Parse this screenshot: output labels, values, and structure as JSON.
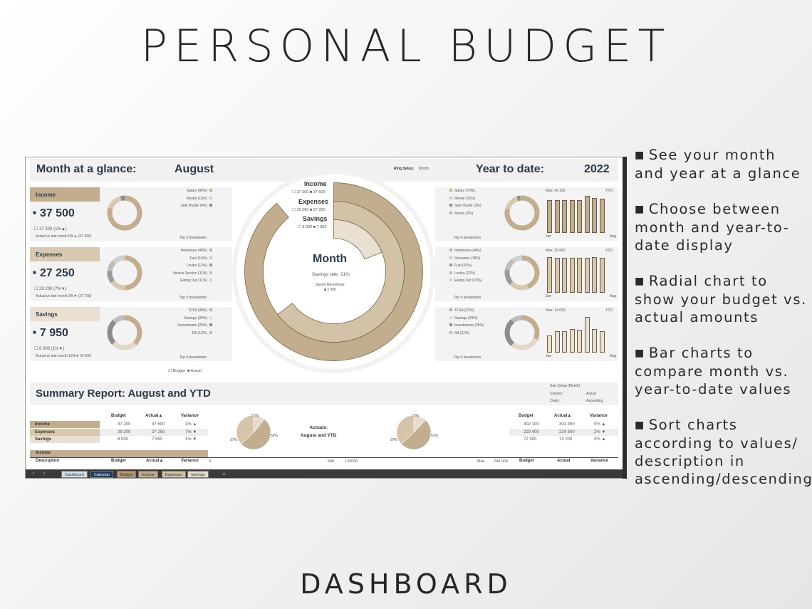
{
  "hero_title": "PERSONAL BUDGET",
  "footer_title": "DASHBOARD",
  "features": [
    "See your month and year at a glance",
    "Choose between month and year-to-date display",
    "Radial chart to show your budget vs. actual amounts",
    "Bar charts to compare month vs. year-to-date values",
    "Sort charts according to values/ description in ascending/descending"
  ],
  "colors": {
    "accent": "#c2ad8e",
    "accent_light": "#d8c8b0",
    "accent_pale": "#eae0d2",
    "dark": "#2b3a4a",
    "panel": "#f2f2f2"
  },
  "dashboard": {
    "month_label": "Month at a glance:",
    "month_value": "August",
    "ring_setup_label": "Ring Setup:",
    "ring_setup_value": "Month",
    "ytd_label": "Year to date:",
    "ytd_value": "2022",
    "center": {
      "income_label": "Income",
      "income_budget": "37 200",
      "income_actual": "37 500",
      "expenses_label": "Expenses",
      "expenses_budget": "29 200",
      "expenses_actual": "27 250",
      "savings_label": "Savings",
      "savings_budget": "8 000",
      "savings_actual": "7 950",
      "title": "Month",
      "savings_rate": "Savings rate: 21%",
      "spend_label": "Spend Remaining:",
      "spend_value": "2 300"
    },
    "cards": [
      {
        "label": "Income",
        "value": "37 500",
        "budget_line": "37 200  (1%▲)",
        "vs_last": "Actual vs last month 0%▲ (37 400)",
        "breakdown_items": [
          "Salary (80%)",
          "Rental (16%)",
          "Side Hustle (4%)"
        ],
        "breakdown_title": "Top 3 breakdown",
        "ytd_items": [
          "Salary (79%)",
          "Rental (16%)",
          "Side Hustle (3%)",
          "Bonus (2%)"
        ],
        "ytd_title": "Top 4 breakdown",
        "max_label": "Max: 42 150",
        "ytd_tag": "YTD",
        "axis_start": "Jan",
        "axis_end": "Aug",
        "bars": [
          0.86,
          0.86,
          0.86,
          0.86,
          0.86,
          0.97,
          0.9,
          0.88
        ]
      },
      {
        "label": "Expenses",
        "value": "27 250",
        "budget_line": "29 200  (7%▼)",
        "vs_last": "Actual vs last month 2%▼ (27 700)",
        "breakdown_items": [
          "Homeloan (49%)",
          "Fuel (16%)",
          "Levies (12%)",
          "Vehicle Service (11%)",
          "Eating Out (11%)"
        ],
        "breakdown_title": "Top 5 breakdown",
        "ytd_items": [
          "Homeloan (44%)",
          "Groceries (19%)",
          "Fuel (15%)",
          "Levies (12%)",
          "Eating Out (10%)"
        ],
        "ytd_title": "Top 5 breakdown",
        "max_label": "Max: 29 950",
        "ytd_tag": "YTD",
        "axis_start": "Jan",
        "axis_end": "Aug",
        "bars": [
          0.93,
          0.9,
          0.9,
          0.9,
          0.9,
          0.9,
          0.92,
          0.91
        ]
      },
      {
        "label": "Savings",
        "value": "7 950",
        "budget_line": "8 000  (1%▼)",
        "vs_last": "Actual vs last month 12%▼ (8 900)",
        "breakdown_items": [
          "TFSA (38%)",
          "Savings (25%)",
          "Investments (25%)",
          "RA (13%)"
        ],
        "breakdown_title": "Top 4 breakdown",
        "ytd_items": [
          "TFSA (32%)",
          "Savings (29%)",
          "Investments (28%)",
          "RA (11%)"
        ],
        "ytd_title": "Top 4 breakdown",
        "max_label": "Max: 14 000",
        "ytd_tag": "YTD",
        "axis_start": "Jan",
        "axis_end": "Aug",
        "bars": [
          0.45,
          0.55,
          0.55,
          0.62,
          0.6,
          0.92,
          0.62,
          0.56
        ]
      }
    ],
    "legend_budget": "Budget",
    "legend_actual": "Actual"
  },
  "summary": {
    "title": "Summary Report: August and YTD",
    "sort_setup_label": "Sort Setup (Month):",
    "sort_column_label": "Column:",
    "sort_column_value": "Actual",
    "sort_order_label": "Order:",
    "sort_order_value": "Ascending",
    "headers": [
      "Budget",
      "Actual▲",
      "Variance"
    ],
    "month_rows": [
      {
        "name": "Income",
        "budget": "37 200",
        "actual": "37 500",
        "variance": "1% ▲"
      },
      {
        "name": "Expenses",
        "budget": "29 200",
        "actual": "27 250",
        "variance": "7% ▼"
      },
      {
        "name": "Savings",
        "budget": "8 000",
        "actual": "7 950",
        "variance": "1% ▼"
      }
    ],
    "ytd_rows": [
      {
        "budget": "302 100",
        "actual": "303 450",
        "variance": "0% ▲"
      },
      {
        "budget": "229 400",
        "actual": "224 500",
        "variance": "2% ▼"
      },
      {
        "budget": "72 300",
        "actual": "74 200",
        "variance": "3% ▲"
      }
    ],
    "pie_center_label": "Actuals:\nAugust and YTD",
    "pie_month_labels": [
      "11%",
      "52%",
      "37%"
    ],
    "pie_ytd_labels": [
      "12%",
      "51%",
      "37%"
    ],
    "income_section": "Income",
    "desc_header": "Description",
    "detail_headers": [
      "Budget",
      "Actual▲",
      "Variance"
    ],
    "detail_headers_ytd": [
      "Budget",
      "Actual",
      "Variance"
    ],
    "axis_min": "0",
    "mid_label": "Mid",
    "mid_value": "120000",
    "max_label": "Max",
    "max_value": "240 000"
  },
  "tabs": [
    "Dashboard",
    "Calendar",
    "Budget",
    "Income",
    "Expenses",
    "Savings"
  ]
}
